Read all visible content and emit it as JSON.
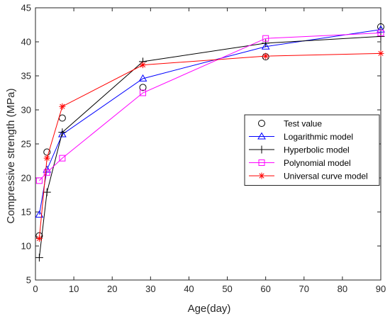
{
  "chart_data": {
    "type": "line",
    "title": "",
    "xlabel": "Age(day)",
    "ylabel": "Compressive strength (MPa)",
    "xlim": [
      0,
      90
    ],
    "ylim": [
      5,
      45
    ],
    "xticks": [
      0,
      10,
      20,
      30,
      40,
      50,
      60,
      70,
      80,
      90
    ],
    "yticks": [
      5,
      10,
      15,
      20,
      25,
      30,
      35,
      40,
      45
    ],
    "grid": false,
    "legend_position": "right",
    "series": [
      {
        "name": "Test value",
        "color": "#000000",
        "marker": "circle",
        "line": false,
        "x": [
          1,
          3,
          7,
          28,
          60,
          90
        ],
        "y": [
          11.5,
          23.8,
          28.8,
          33.3,
          37.8,
          42.2
        ]
      },
      {
        "name": "Logarithmic model",
        "color": "#0000ff",
        "marker": "triangle",
        "line": true,
        "x": [
          1,
          3,
          7,
          28,
          60,
          90
        ],
        "y": [
          14.6,
          21.2,
          26.4,
          34.6,
          39.3,
          41.8
        ]
      },
      {
        "name": "Hyperbolic model",
        "color": "#000000",
        "marker": "plus",
        "line": true,
        "x": [
          1,
          3,
          7,
          28,
          60,
          90
        ],
        "y": [
          8.3,
          17.9,
          26.7,
          37.1,
          39.8,
          40.8
        ]
      },
      {
        "name": "Polynomial model",
        "color": "#ff00ff",
        "marker": "square",
        "line": true,
        "x": [
          1,
          3,
          7,
          28,
          60,
          90
        ],
        "y": [
          19.6,
          20.8,
          22.9,
          32.5,
          40.5,
          41.3
        ]
      },
      {
        "name": "Universal curve model",
        "color": "#ff0000",
        "marker": "asterisk",
        "line": true,
        "x": [
          1,
          3,
          7,
          28,
          60,
          90
        ],
        "y": [
          11.1,
          22.9,
          30.5,
          36.6,
          37.9,
          38.3
        ]
      }
    ]
  }
}
